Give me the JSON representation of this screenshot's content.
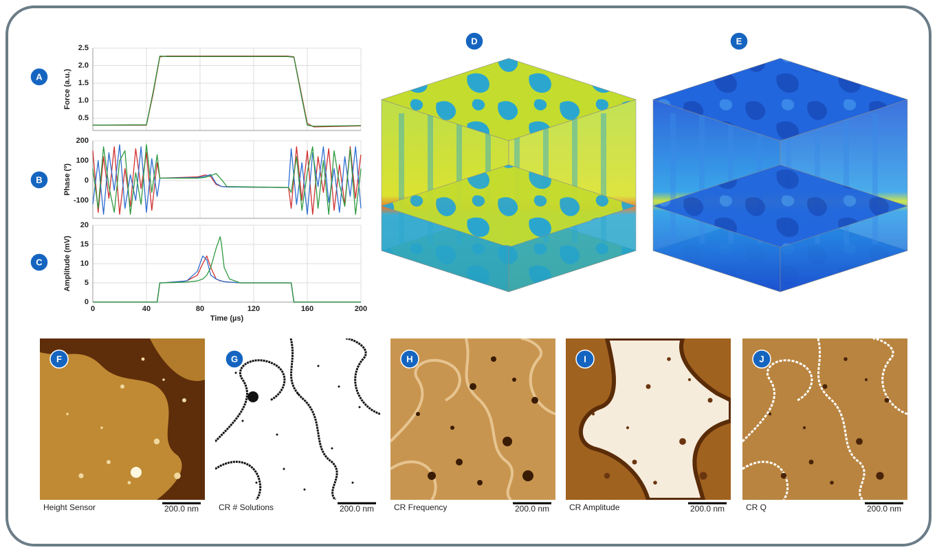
{
  "chart_data": [
    {
      "type": "line",
      "label": "A",
      "ylabel": "Force (a.u.)",
      "x": [
        0,
        40,
        45,
        50,
        55,
        145,
        150,
        155,
        160,
        165,
        200
      ],
      "xlim": [
        0,
        200
      ],
      "xticks": [
        0,
        40,
        80,
        120,
        160,
        200
      ],
      "ylim": [
        0.15,
        2.5
      ],
      "yticks": [
        0.5,
        {
          "value": 1,
          "label": "1.0"
        },
        1.5,
        {
          "value": 2,
          "label": "2.0"
        },
        2.5
      ],
      "grid": true,
      "series": [
        {
          "color": "#c0392b",
          "values": [
            0.3,
            0.3,
            1.2,
            2.25,
            2.27,
            2.27,
            2.25,
            1.3,
            0.35,
            0.25,
            0.28
          ]
        },
        {
          "color": "#2e8b3a",
          "values": [
            0.3,
            0.31,
            1.25,
            2.27,
            2.26,
            2.26,
            2.24,
            1.25,
            0.3,
            0.27,
            0.29
          ]
        }
      ]
    },
    {
      "type": "line",
      "label": "B",
      "ylabel": "Phase (º)",
      "x": [
        0,
        4,
        8,
        12,
        16,
        20,
        24,
        28,
        32,
        36,
        40,
        44,
        48,
        50,
        78,
        84,
        88,
        92,
        96,
        100,
        146,
        148,
        152,
        156,
        160,
        164,
        168,
        172,
        176,
        180,
        184,
        188,
        192,
        196,
        200
      ],
      "xlim": [
        0,
        200
      ],
      "xticks": [
        0,
        40,
        80,
        120,
        160,
        200
      ],
      "ylim": [
        -190,
        200
      ],
      "yticks": [
        -100,
        0,
        100,
        200
      ],
      "grid": true,
      "series": [
        {
          "color": "#d03030",
          "values": [
            150,
            -160,
            120,
            -90,
            170,
            -170,
            60,
            -130,
            160,
            -40,
            140,
            -150,
            90,
            12,
            18,
            28,
            20,
            -20,
            -30,
            -32,
            -35,
            -140,
            170,
            -100,
            150,
            -170,
            120,
            -60,
            160,
            -150,
            80,
            -120,
            170,
            -90,
            130
          ]
        },
        {
          "color": "#2f6fd0",
          "values": [
            -120,
            100,
            -170,
            140,
            -50,
            180,
            -140,
            30,
            -100,
            170,
            -160,
            110,
            -80,
            12,
            15,
            22,
            30,
            -15,
            -30,
            -32,
            -35,
            160,
            -120,
            90,
            -170,
            140,
            -30,
            170,
            -110,
            60,
            -160,
            120,
            -80,
            170,
            -140
          ]
        },
        {
          "color": "#2e9a40",
          "values": [
            60,
            -140,
            170,
            -30,
            -160,
            100,
            150,
            -170,
            40,
            -120,
            180,
            -60,
            130,
            12,
            12,
            16,
            25,
            35,
            5,
            -30,
            -35,
            -60,
            120,
            -150,
            40,
            170,
            -140,
            100,
            -170,
            150,
            -20,
            -130,
            160,
            -170,
            60
          ]
        }
      ]
    },
    {
      "type": "line",
      "label": "C",
      "ylabel": "Amplitude (mV)",
      "xlabel": "Time (µs)",
      "x": [
        0,
        48,
        50,
        52,
        70,
        78,
        82,
        85,
        88,
        92,
        95,
        96,
        98,
        102,
        110,
        148,
        150,
        152,
        200
      ],
      "xlim": [
        0,
        200
      ],
      "xticks": [
        0,
        40,
        80,
        120,
        160,
        200
      ],
      "ylim": [
        0,
        20
      ],
      "yticks": [
        0,
        5,
        10,
        15,
        20
      ],
      "grid": true,
      "series": [
        {
          "color": "#d03030",
          "values": [
            0,
            0,
            5,
            5,
            5.5,
            7,
            10,
            12,
            9,
            6,
            5.5,
            5.5,
            5.3,
            5.2,
            5,
            5,
            0,
            0,
            0
          ]
        },
        {
          "color": "#2f6fd0",
          "values": [
            0,
            0,
            5,
            5,
            5.5,
            8,
            12,
            11,
            7,
            6,
            5.6,
            5.5,
            5.3,
            5.2,
            5,
            5,
            0,
            0,
            0
          ]
        },
        {
          "color": "#2e9a40",
          "values": [
            0,
            0,
            5,
            5,
            5.2,
            5.5,
            6,
            7,
            9,
            14,
            17,
            15,
            9,
            6,
            5,
            5,
            0,
            0,
            0
          ]
        }
      ]
    }
  ],
  "panels": [
    {
      "label": "D"
    },
    {
      "label": "E"
    },
    {
      "label": "F",
      "caption": "Height Sensor",
      "scale": "200.0 nm"
    },
    {
      "label": "G",
      "caption": "CR # Solutions",
      "scale": "200.0 nm"
    },
    {
      "label": "H",
      "caption": "CR Frequency",
      "scale": "200.0 nm"
    },
    {
      "label": "I",
      "caption": "CR Amplitude",
      "scale": "200.0 nm"
    },
    {
      "label": "J",
      "caption": "CR Q",
      "scale": "200.0 nm"
    }
  ]
}
